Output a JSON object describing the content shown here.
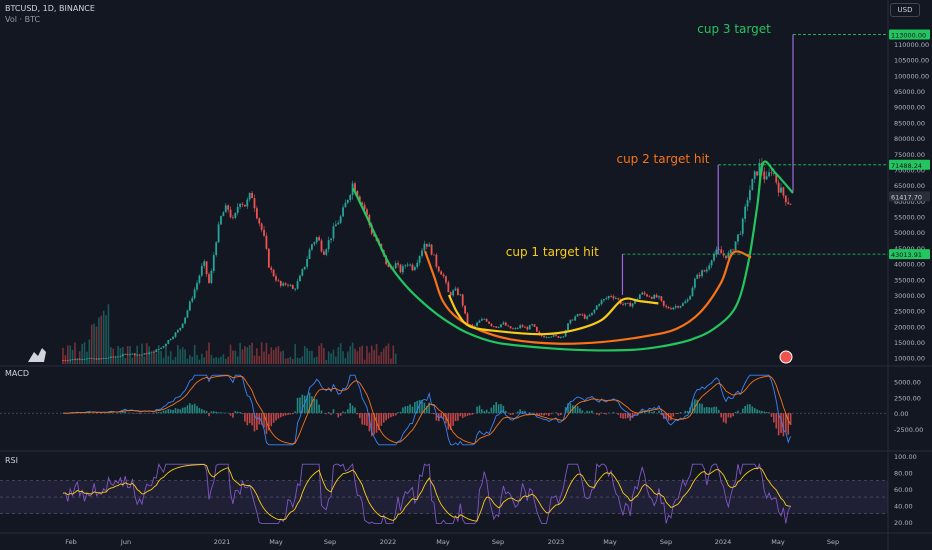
{
  "header": {
    "symbol": "BTCUSD, 1D, BINANCE",
    "volume_label": "Vol · BTC",
    "currency": "USD"
  },
  "panes": {
    "macd_label": "MACD",
    "rsi_label": "RSI"
  },
  "colors": {
    "background": "#131722",
    "up": "#26a69a",
    "down": "#ef5350",
    "green_curve": "#22c55e",
    "orange_curve": "#f97316",
    "yellow_curve": "#facc15",
    "target_line": "#22c55e",
    "projection": "#9c6ade",
    "macd_line": "#3b82f6",
    "signal_line": "#f97316",
    "rsi_line": "#7e57c2",
    "rsi_ma": "#facc15"
  },
  "chart_data": {
    "type": "line",
    "symbol": "BTCUSD",
    "interval": "1D",
    "exchange": "BINANCE",
    "x_ticks": [
      "Feb",
      "Jun",
      "2021",
      "May",
      "Sep",
      "2022",
      "May",
      "Sep",
      "2023",
      "May",
      "Sep",
      "2024",
      "May",
      "Sep"
    ],
    "price_axis": {
      "ticks": [
        10000,
        15000,
        20000,
        25000,
        30000,
        35000,
        40000,
        45000,
        50000,
        55000,
        60000,
        65000,
        70000,
        75000,
        80000,
        85000,
        90000,
        95000,
        100000,
        105000,
        110000
      ],
      "ylim": [
        8000,
        117000
      ]
    },
    "price_labels": [
      {
        "value": 113000.0,
        "label": "113000.00",
        "color": "#22c55e"
      },
      {
        "value": 71488.24,
        "label": "71488.24",
        "color": "#22c55e"
      },
      {
        "value": 61417.7,
        "label": "61417.70",
        "color": "#2a2e39"
      },
      {
        "value": 43013.91,
        "label": "43013.91",
        "color": "#22c55e"
      }
    ],
    "price_path": [
      [
        0,
        9200
      ],
      [
        6,
        9700
      ],
      [
        12,
        9600
      ],
      [
        18,
        10400
      ],
      [
        22,
        11300
      ],
      [
        26,
        10900
      ],
      [
        30,
        11800
      ],
      [
        33,
        13300
      ],
      [
        36,
        16300
      ],
      [
        39,
        19200
      ],
      [
        41,
        23500
      ],
      [
        43,
        29000
      ],
      [
        45,
        34500
      ],
      [
        47,
        40500
      ],
      [
        49,
        33000
      ],
      [
        51,
        47000
      ],
      [
        53,
        55500
      ],
      [
        55,
        58000
      ],
      [
        57,
        53000
      ],
      [
        59,
        60500
      ],
      [
        61,
        58500
      ],
      [
        63,
        62500
      ],
      [
        65,
        55000
      ],
      [
        67,
        49000
      ],
      [
        69,
        38500
      ],
      [
        71,
        35500
      ],
      [
        73,
        32500
      ],
      [
        75,
        34000
      ],
      [
        77,
        31500
      ],
      [
        79,
        35000
      ],
      [
        81,
        40000
      ],
      [
        83,
        46000
      ],
      [
        85,
        48500
      ],
      [
        87,
        43500
      ],
      [
        89,
        47500
      ],
      [
        91,
        52000
      ],
      [
        93,
        55000
      ],
      [
        95,
        60500
      ],
      [
        97,
        66000
      ],
      [
        99,
        61000
      ],
      [
        101,
        57000
      ],
      [
        103,
        50500
      ],
      [
        105,
        47000
      ],
      [
        107,
        42500
      ],
      [
        109,
        38000
      ],
      [
        111,
        40000
      ],
      [
        113,
        37500
      ],
      [
        115,
        40500
      ],
      [
        117,
        38500
      ],
      [
        119,
        42500
      ],
      [
        121,
        47000
      ],
      [
        123,
        44500
      ],
      [
        125,
        39000
      ],
      [
        127,
        36500
      ],
      [
        129,
        30000
      ],
      [
        131,
        31500
      ],
      [
        133,
        29500
      ],
      [
        135,
        21000
      ],
      [
        137,
        19500
      ],
      [
        139,
        21500
      ],
      [
        141,
        22500
      ],
      [
        143,
        20500
      ],
      [
        145,
        19800
      ],
      [
        147,
        21000
      ],
      [
        149,
        19500
      ],
      [
        151,
        19000
      ],
      [
        153,
        20200
      ],
      [
        155,
        19300
      ],
      [
        157,
        20500
      ],
      [
        159,
        17000
      ],
      [
        161,
        16800
      ],
      [
        163,
        17100
      ],
      [
        165,
        16600
      ],
      [
        167,
        16800
      ],
      [
        169,
        21000
      ],
      [
        171,
        23000
      ],
      [
        173,
        23800
      ],
      [
        175,
        22500
      ],
      [
        177,
        24200
      ],
      [
        179,
        27500
      ],
      [
        181,
        28500
      ],
      [
        183,
        30000
      ],
      [
        185,
        29000
      ],
      [
        187,
        27000
      ],
      [
        189,
        26800
      ],
      [
        191,
        27500
      ],
      [
        193,
        30500
      ],
      [
        195,
        30000
      ],
      [
        197,
        29400
      ],
      [
        199,
        29200
      ],
      [
        201,
        26000
      ],
      [
        203,
        25900
      ],
      [
        205,
        26500
      ],
      [
        207,
        27000
      ],
      [
        209,
        28500
      ],
      [
        211,
        34500
      ],
      [
        213,
        37000
      ],
      [
        215,
        37800
      ],
      [
        217,
        42500
      ],
      [
        219,
        44000
      ],
      [
        221,
        42500
      ],
      [
        223,
        43000
      ],
      [
        225,
        47500
      ],
      [
        227,
        52000
      ],
      [
        229,
        62000
      ],
      [
        231,
        67500
      ],
      [
        233,
        71500
      ],
      [
        235,
        66000
      ],
      [
        237,
        70500
      ],
      [
        239,
        64500
      ],
      [
        241,
        61500
      ],
      [
        243,
        59000
      ],
      [
        244,
        61400
      ]
    ],
    "cup_curves": [
      {
        "name": "",
        "color": "#22c55e",
        "points": [
          [
            97,
            64000
          ],
          [
            103,
            52000
          ],
          [
            109,
            40000
          ],
          [
            115,
            32500
          ],
          [
            121,
            27000
          ],
          [
            127,
            22500
          ],
          [
            135,
            18000
          ],
          [
            145,
            14800
          ],
          [
            160,
            13200
          ],
          [
            175,
            12400
          ],
          [
            190,
            12500
          ],
          [
            200,
            13600
          ],
          [
            210,
            15800
          ],
          [
            218,
            19500
          ],
          [
            225,
            26500
          ],
          [
            229,
            40000
          ],
          [
            232,
            58000
          ],
          [
            234,
            72000
          ],
          [
            238,
            69000
          ],
          [
            244,
            62500
          ]
        ]
      },
      {
        "name": "",
        "color": "#f97316",
        "points": [
          [
            121,
            44000
          ],
          [
            124,
            36000
          ],
          [
            127,
            28000
          ],
          [
            132,
            22500
          ],
          [
            140,
            18500
          ],
          [
            150,
            15800
          ],
          [
            165,
            14500
          ],
          [
            180,
            15000
          ],
          [
            195,
            16900
          ],
          [
            205,
            19200
          ],
          [
            213,
            24500
          ],
          [
            220,
            34000
          ],
          [
            224,
            43500
          ],
          [
            230,
            42000
          ]
        ]
      },
      {
        "name": "",
        "color": "#facc15",
        "points": [
          [
            129,
            30000
          ],
          [
            132,
            24000
          ],
          [
            136,
            20000
          ],
          [
            145,
            18500
          ],
          [
            160,
            17500
          ],
          [
            170,
            18600
          ],
          [
            180,
            22000
          ],
          [
            187,
            28500
          ],
          [
            193,
            28000
          ],
          [
            199,
            27300
          ]
        ]
      }
    ],
    "target_lines": [
      {
        "value": 43013.91,
        "x_start": 187
      },
      {
        "value": 71488.24,
        "x_start": 219
      },
      {
        "value": 113000.0,
        "x_start": 244
      }
    ],
    "projections": [
      {
        "x": 187,
        "from": 30000,
        "to": 43013.91
      },
      {
        "x": 219,
        "from": 43000,
        "to": 71488.24
      },
      {
        "x": 244,
        "from": 63000,
        "to": 113000.0
      }
    ],
    "annotations": [
      {
        "text": "cup 1 target hit",
        "color": "#facc15",
        "x": 148,
        "y": 42500
      },
      {
        "text": "cup 2 target hit",
        "color": "#f97316",
        "x": 185,
        "y": 72000
      },
      {
        "text": "cup 3 target",
        "color": "#22c55e",
        "x": 212,
        "y": 113500
      }
    ],
    "macd": {
      "ticks": [
        -2500,
        0,
        2500,
        5000
      ],
      "tick_labels": [
        "-2500.00",
        "0.00",
        "2500.00",
        "5000.00"
      ],
      "ylim": [
        -5500,
        6500
      ]
    },
    "rsi": {
      "ticks": [
        20,
        40,
        60,
        80,
        100
      ],
      "tick_labels": [
        "20.00",
        "40.00",
        "60.00",
        "80.00",
        "100.00"
      ],
      "ylim": [
        10,
        100
      ],
      "band": [
        30,
        70
      ]
    }
  }
}
